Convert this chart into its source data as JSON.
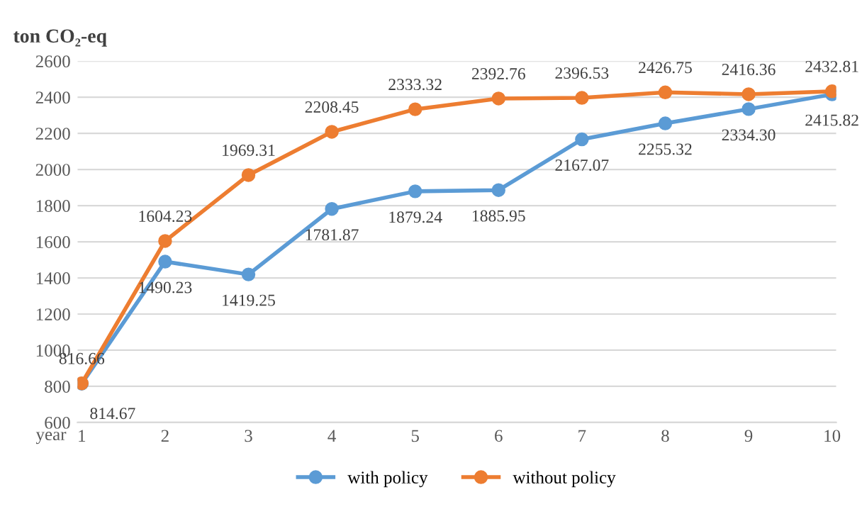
{
  "chart_data": {
    "type": "line",
    "ylabel": "ton CO₂-eq",
    "xlabel": "year",
    "categories": [
      "1",
      "2",
      "3",
      "4",
      "5",
      "6",
      "7",
      "8",
      "9",
      "10"
    ],
    "series": [
      {
        "name": "with policy",
        "color": "#5b9bd5",
        "values": [
          814.67,
          1490.23,
          1419.25,
          1781.87,
          1879.24,
          1885.95,
          2167.07,
          2255.32,
          2334.3,
          2415.82
        ],
        "value_labels": [
          "814.67",
          "1490.23",
          "1419.25",
          "1781.87",
          "1879.24",
          "1885.95",
          "2167.07",
          "2255.32",
          "2334.30",
          "2415.82"
        ]
      },
      {
        "name": "without policy",
        "color": "#ed7d31",
        "values": [
          816.66,
          1604.23,
          1969.31,
          2208.45,
          2333.32,
          2392.76,
          2396.53,
          2426.75,
          2416.36,
          2432.81
        ],
        "value_labels": [
          "816.66",
          "1604.23",
          "1969.31",
          "2208.45",
          "2333.32",
          "2392.76",
          "2396.53",
          "2426.75",
          "2416.36",
          "2432.81"
        ]
      }
    ],
    "ylim": [
      600,
      2600
    ],
    "yticks": [
      600,
      800,
      1000,
      1200,
      1400,
      1600,
      1800,
      2000,
      2200,
      2400,
      2600
    ],
    "grid": "y",
    "legend": "bottom",
    "marker": "circle",
    "line_style": "solid"
  }
}
